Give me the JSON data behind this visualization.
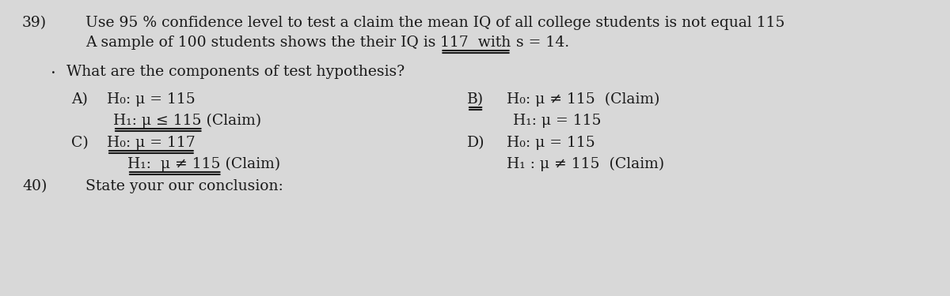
{
  "background_color": "#d8d8d8",
  "text_color": "#1a1a1a",
  "fs": 13.5,
  "fs_small": 13.0,
  "q_num": "39)",
  "line1": "Use 95 % confidence level to test a claim the mean IQ of all college students is not equal 115",
  "line2_pre": "A sample of 100 students shows the their IQ is ",
  "line2_mid": "117  with",
  "line2_suf": " s = 14.",
  "sub_bullet": "·",
  "sub_q": "What are the components of test hypothesis?",
  "A_label": "A)",
  "A_h0": "H₀: μ = 115",
  "A_h1": "H₁: μ ≤ 115",
  "A_h1_suf": "_(Claim)",
  "B_label": "B)",
  "B_underline_text": "B)",
  "B_h0": "H₀: μ ≠ 115  (Claim)",
  "B_h1": "H₁: μ = 115",
  "C_label": "C)",
  "C_h0": "H₀: μ = 117",
  "C_h1": "H₁:  μ ≠ 115",
  "C_h1_suf": "_(Claim)",
  "D_label": "D)",
  "D_h0": "H₀: μ = 115",
  "D_h1": "H₁ : μ ≠ 115  (Claim)",
  "footer_num": "40)",
  "footer_text": "State your our conclusion:"
}
